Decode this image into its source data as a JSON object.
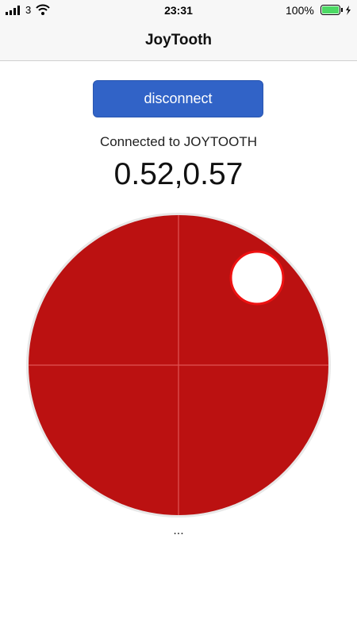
{
  "status_bar": {
    "carrier": "3",
    "time": "23:31",
    "battery": "100%"
  },
  "nav_bar": {
    "title": "JoyTooth"
  },
  "content": {
    "button": "disconnect",
    "status": "Connected to JOYTOOTH",
    "reading": "0.52,0.57",
    "footer": "..."
  }
}
